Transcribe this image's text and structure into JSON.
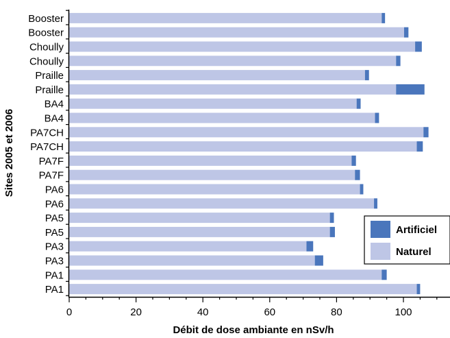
{
  "chart_data": {
    "type": "bar",
    "orientation": "horizontal",
    "stacked": true,
    "categories": [
      "Booster",
      "Booster",
      "Choully",
      "Choully",
      "Praille",
      "Praille",
      "BA4",
      "BA4",
      "PA7CH",
      "PA7CH",
      "PA7F",
      "PA7F",
      "PA6",
      "PA6",
      "PA5",
      "PA5",
      "PA3",
      "PA3",
      "PA1",
      "PA1"
    ],
    "series": [
      {
        "name": "Naturel",
        "color": "#bec6e6",
        "values": [
          93.5,
          100.2,
          103.5,
          97.8,
          88.5,
          97.8,
          86,
          91.5,
          106,
          104,
          84.5,
          85.5,
          87,
          91.2,
          78,
          78,
          71,
          73.5,
          93.5,
          104
        ]
      },
      {
        "name": "Artificiel",
        "color": "#4a76bc",
        "values": [
          1.0,
          1.3,
          2.0,
          1.3,
          1.2,
          8.5,
          1.2,
          1.2,
          1.5,
          1.8,
          1.3,
          1.5,
          1.0,
          1.0,
          1.2,
          1.5,
          2.0,
          2.5,
          1.5,
          1.0
        ]
      }
    ],
    "xlabel": "Débit de dose ambiante en nSv/h",
    "ylabel": "Sites 2005 et 2006",
    "xlim": [
      0,
      115
    ],
    "xticks": [
      0,
      20,
      40,
      60,
      80,
      100
    ],
    "legend": {
      "placement": "bottom-right",
      "items": [
        "Artificiel",
        "Naturel"
      ]
    },
    "grid": false
  }
}
